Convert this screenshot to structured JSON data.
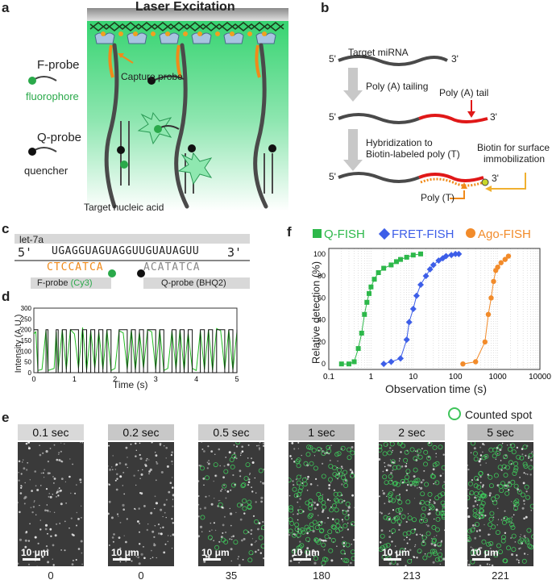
{
  "panel_a": {
    "label": "a",
    "title": "Laser Excitation",
    "f_probe": "F-probe",
    "fluorophore": "fluorophore",
    "q_probe": "Q-probe",
    "quencher": "quencher",
    "capture_probe": "Capture probe",
    "target": "Target nucleic acid"
  },
  "panel_b": {
    "label": "b",
    "target_mirna": "Target miRNA",
    "five": "5'",
    "three": "3'",
    "step1": "Poly (A) tailing",
    "poly_a_tail": "Poly (A) tail",
    "step2_line1": "Hybridization to",
    "step2_line2": "Biotin-labeled poly (T)",
    "biotin_line1": "Biotin for surface",
    "biotin_line2": "immobilization",
    "poly_t": "Poly (T)"
  },
  "panel_c": {
    "label": "c",
    "name": "let-7a",
    "seq_prefix": "5'",
    "sequence": "UGAGGUAGUAGGUUGUAUAGUU",
    "seq_suffix": "3'",
    "f_seq": "CTCCATCA",
    "q_seq": "ACATATCA",
    "f_probe": "F-probe",
    "f_dye": "(Cy3)",
    "q_probe": "Q-probe",
    "q_dye": "(BHQ2)"
  },
  "panel_d": {
    "label": "d",
    "ylabel": "Intensity (A.U.)",
    "xlabel": "Time (s)",
    "yticks": [
      "300",
      "250",
      "200",
      "150",
      "100",
      "50",
      "0"
    ],
    "xticks": [
      "0",
      "1",
      "2",
      "3",
      "4",
      "5"
    ]
  },
  "panel_e": {
    "label": "e",
    "legend": "Counted spot",
    "scale_label": "10 μm",
    "frames": [
      {
        "time": "0.1 sec",
        "count": "0"
      },
      {
        "time": "0.2 sec",
        "count": "0"
      },
      {
        "time": "0.5 sec",
        "count": "35"
      },
      {
        "time": "1 sec",
        "count": "180"
      },
      {
        "time": "2 sec",
        "count": "213"
      },
      {
        "time": "5 sec",
        "count": "221"
      }
    ]
  },
  "panel_f": {
    "label": "f",
    "legend": [
      "Q-FISH",
      "FRET-FISH",
      "Ago-FISH"
    ],
    "ylabel": "Relative detection (%)",
    "xlabel": "Observation time (s)",
    "yticks": [
      "100",
      "80",
      "60",
      "40",
      "20",
      "0"
    ],
    "xticks": [
      "0.1",
      "1",
      "10",
      "100",
      "1000",
      "10000"
    ]
  },
  "chart_data": [
    {
      "type": "line",
      "title": "",
      "xlabel": "Time (s)",
      "ylabel": "Intensity (A.U.)",
      "xlim": [
        0,
        5
      ],
      "ylim": [
        0,
        300
      ],
      "note_series_colors": [
        "#22bb22",
        "#111111"
      ],
      "series": [
        {
          "values_description_only": false,
          "x": [
            0,
            0.05,
            0.1,
            0.2,
            0.3,
            0.35,
            0.5,
            0.55,
            0.6,
            0.7,
            0.8,
            0.9,
            1.0,
            1.1,
            1.2,
            1.3,
            1.4,
            1.5,
            1.6,
            1.7,
            1.8,
            1.9,
            2.0,
            2.1,
            2.2,
            2.3,
            2.4,
            2.5,
            2.6,
            2.7,
            2.8,
            2.9,
            3.0,
            3.1,
            3.2,
            3.3,
            3.4,
            3.5,
            3.6,
            3.7,
            3.8,
            3.9,
            4.0,
            4.1,
            4.2,
            4.3,
            4.4,
            4.5,
            4.6,
            4.7,
            4.8,
            4.9,
            5.0
          ],
          "y": [
            180,
            190,
            10,
            15,
            200,
            10,
            20,
            190,
            10,
            200,
            15,
            200,
            180,
            20,
            210,
            10,
            195,
            20,
            190,
            15,
            200,
            10,
            20,
            195,
            185,
            15,
            200,
            10,
            190,
            20,
            200,
            190,
            15,
            200,
            10,
            20,
            195,
            15,
            200,
            10,
            185,
            20,
            10,
            195,
            15,
            200,
            10,
            205,
            195,
            15,
            200,
            10,
            190
          ]
        }
      ]
    },
    {
      "type": "scatter",
      "title": "",
      "xlabel": "Observation time (s)",
      "ylabel": "Relative detection (%)",
      "xscale": "log",
      "xlim": [
        0.1,
        10000
      ],
      "ylim": [
        -5,
        105
      ],
      "legend_placement": "top",
      "series": [
        {
          "name": "Q-FISH",
          "color": "#2db84a",
          "x": [
            0.2,
            0.3,
            0.4,
            0.5,
            0.6,
            0.7,
            0.8,
            0.9,
            1.0,
            1.2,
            1.5,
            2,
            3,
            4,
            5,
            7,
            10,
            15
          ],
          "y": [
            0,
            0,
            2,
            14,
            28,
            45,
            56,
            64,
            70,
            77,
            83,
            87,
            90,
            93,
            95,
            97,
            99,
            100
          ]
        },
        {
          "name": "FRET-FISH",
          "color": "#3d5ee8",
          "x": [
            2,
            3,
            5,
            7,
            8,
            10,
            12,
            15,
            20,
            25,
            30,
            40,
            50,
            60,
            80,
            100,
            120
          ],
          "y": [
            0,
            2,
            5,
            22,
            38,
            50,
            62,
            72,
            80,
            86,
            90,
            94,
            96,
            98,
            99,
            100,
            100
          ]
        },
        {
          "name": "Ago-FISH",
          "color": "#f28b2a",
          "x": [
            150,
            300,
            500,
            600,
            700,
            800,
            900,
            1000,
            1200,
            1500,
            1800
          ],
          "y": [
            0,
            2,
            20,
            45,
            60,
            75,
            85,
            88,
            92,
            95,
            98
          ]
        }
      ]
    }
  ]
}
